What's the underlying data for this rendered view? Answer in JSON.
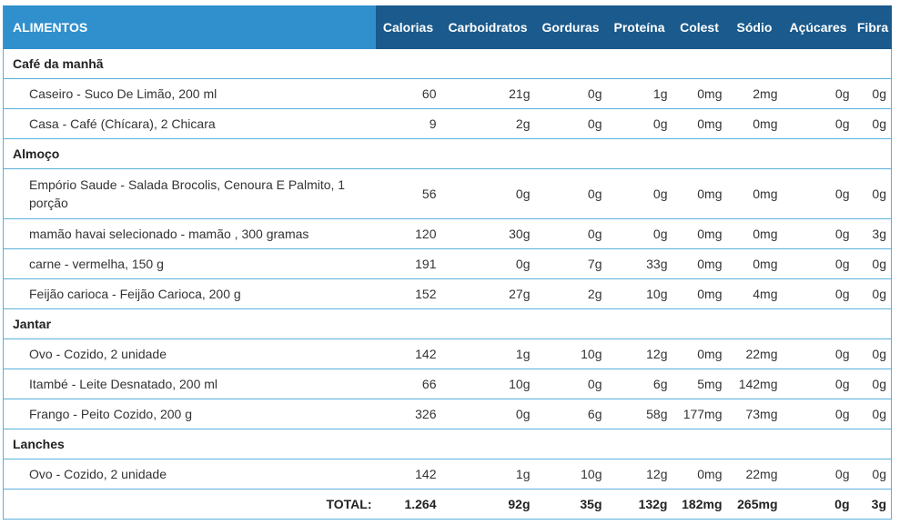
{
  "header": {
    "food": "ALIMENTOS",
    "cols": [
      "Calorias",
      "Carboidratos",
      "Gorduras",
      "Proteína",
      "Colest",
      "Sódio",
      "Açúcares",
      "Fibra"
    ]
  },
  "meals": [
    {
      "name": "Café da manhã",
      "items": [
        {
          "brand": "Caseiro",
          "desc": "Suco De Limão, 200 ml",
          "vals": [
            "60",
            "21g",
            "0g",
            "1g",
            "0mg",
            "2mg",
            "0g",
            "0g"
          ]
        },
        {
          "brand": "Casa",
          "desc": "Café (Chícara), 2 Chicara",
          "vals": [
            "9",
            "2g",
            "0g",
            "0g",
            "0mg",
            "0mg",
            "0g",
            "0g"
          ]
        }
      ]
    },
    {
      "name": "Almoço",
      "items": [
        {
          "brand": "Empório Saude",
          "desc": "Salada Brocolis, Cenoura E Palmito, 1 porção",
          "vals": [
            "56",
            "0g",
            "0g",
            "0g",
            "0mg",
            "0mg",
            "0g",
            "0g"
          ]
        },
        {
          "brand": "mamão havai selecionado",
          "desc": "mamão , 300 gramas",
          "vals": [
            "120",
            "30g",
            "0g",
            "0g",
            "0mg",
            "0mg",
            "0g",
            "3g"
          ]
        },
        {
          "brand": "carne",
          "desc": "vermelha, 150 g",
          "vals": [
            "191",
            "0g",
            "7g",
            "33g",
            "0mg",
            "0mg",
            "0g",
            "0g"
          ]
        },
        {
          "brand": "Feijão carioca",
          "desc": "Feijão Carioca, 200 g",
          "vals": [
            "152",
            "27g",
            "2g",
            "10g",
            "0mg",
            "4mg",
            "0g",
            "0g"
          ]
        }
      ]
    },
    {
      "name": "Jantar",
      "items": [
        {
          "brand": "Ovo",
          "desc": "Cozido, 2 unidade",
          "vals": [
            "142",
            "1g",
            "10g",
            "12g",
            "0mg",
            "22mg",
            "0g",
            "0g"
          ]
        },
        {
          "brand": "Itambé",
          "desc": "Leite Desnatado, 200 ml",
          "vals": [
            "66",
            "10g",
            "0g",
            "6g",
            "5mg",
            "142mg",
            "0g",
            "0g"
          ]
        },
        {
          "brand": "Frango",
          "desc": "Peito Cozido, 200 g",
          "vals": [
            "326",
            "0g",
            "6g",
            "58g",
            "177mg",
            "73mg",
            "0g",
            "0g"
          ]
        }
      ]
    },
    {
      "name": "Lanches",
      "items": [
        {
          "brand": "Ovo",
          "desc": "Cozido, 2 unidade",
          "vals": [
            "142",
            "1g",
            "10g",
            "12g",
            "0mg",
            "22mg",
            "0g",
            "0g"
          ]
        }
      ]
    }
  ],
  "total": {
    "label": "TOTAL:",
    "vals": [
      "1.264",
      "92g",
      "35g",
      "132g",
      "182mg",
      "265mg",
      "0g",
      "3g"
    ]
  }
}
